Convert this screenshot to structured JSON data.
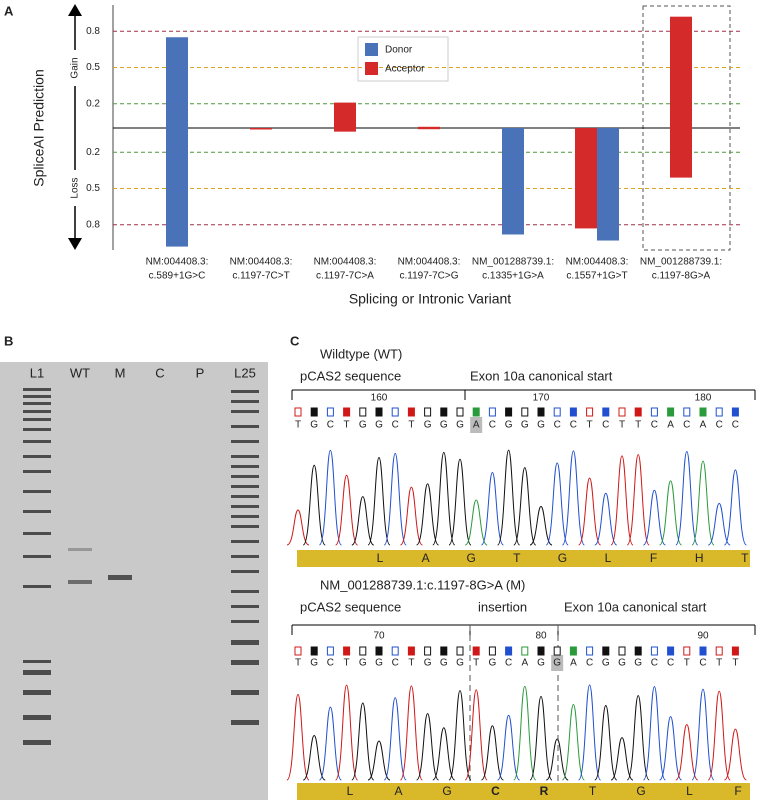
{
  "panel_labels": [
    "A",
    "B",
    "C"
  ],
  "chart_data": {
    "type": "bar",
    "y_label": "SpliceAI Prediction",
    "x_label": "Splicing or Intronic Variant",
    "y_direction_labels": [
      "Gain",
      "Loss"
    ],
    "categories": [
      [
        "NM:004408.3:",
        "c.589+1G>C"
      ],
      [
        "NM:004408.3:",
        "c.1197-7C>T"
      ],
      [
        "NM:004408.3:",
        "c.1197-7C>A"
      ],
      [
        "NM:004408.3:",
        "c.1197-7C>G"
      ],
      [
        "NM_001288739.1:",
        "c.1335+1G>A"
      ],
      [
        "NM:004408.3:",
        "c.1557+1G>T"
      ],
      [
        "NM_001288739.1:",
        "c.1197-8G>A"
      ]
    ],
    "series": [
      {
        "name": "Donor",
        "color": "#4a72b8",
        "gain": [
          0.75,
          null,
          null,
          null,
          0,
          0,
          null
        ],
        "loss": [
          -0.98,
          null,
          null,
          null,
          -0.88,
          -0.93,
          null
        ]
      },
      {
        "name": "Acceptor",
        "color": "#d42a2a",
        "gain": [
          null,
          0,
          0.21,
          0.01,
          null,
          0,
          0.92
        ],
        "loss": [
          null,
          -0.01,
          -0.03,
          -0.01,
          null,
          -0.83,
          -0.41
        ]
      }
    ],
    "ylim": [
      -1,
      1
    ],
    "yticks": [
      {
        "value": -0.8,
        "label": "0.8"
      },
      {
        "value": -0.5,
        "label": "0.5"
      },
      {
        "value": -0.2,
        "label": "0.2"
      },
      0.2,
      0.5,
      0.8
    ],
    "grid_colors": {
      "0.2": "#4a9a3a",
      "0.5": "#e0a020",
      "0.8": "#a0304a"
    },
    "legend": "top"
  },
  "gel": {
    "lanes": [
      "L1",
      "WT",
      "M",
      "C",
      "P",
      "L25"
    ]
  },
  "chromatograms": [
    {
      "title": "Wildtype (WT)",
      "regions": [
        "pCAS2 sequence",
        "Exon 10a canonical start"
      ],
      "positions": [
        160,
        170,
        180
      ],
      "bases": "TGCTGGCTGGGACGGGCCTCTTCACACC",
      "highlighted_base": 11,
      "amino_acids": [
        "L",
        "A",
        "G",
        "T",
        "G",
        "L",
        "F",
        "H",
        "T"
      ]
    },
    {
      "title": "NM_001288739.1:c.1197-8G>A (M)",
      "regions": [
        "pCAS2 sequence",
        "insertion",
        "Exon 10a canonical start"
      ],
      "positions": [
        70,
        80,
        90
      ],
      "bases": "TGCTGGCTGGGTGCAGGACGGGCCTCTT",
      "highlighted_base": 16,
      "amino_acids": [
        "L",
        "A",
        "G",
        "C",
        "R",
        "T",
        "G",
        "L",
        "F"
      ],
      "inserted_amino_acids": [
        3,
        4
      ]
    }
  ]
}
